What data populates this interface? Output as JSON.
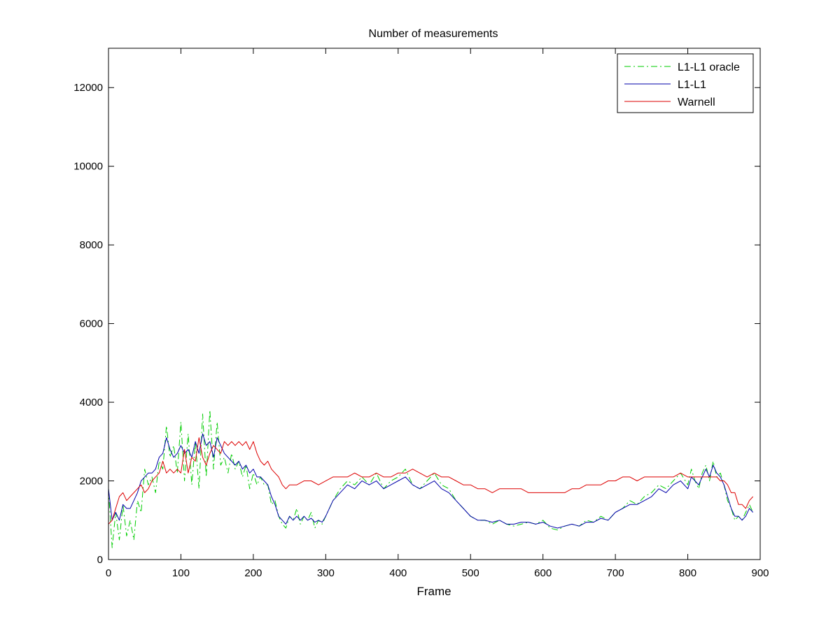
{
  "chart_data": {
    "type": "line",
    "title": "Number of measurements",
    "xlabel": "Frame",
    "ylabel": "",
    "xlim": [
      0,
      900
    ],
    "ylim": [
      0,
      13000
    ],
    "x_ticks": [
      "0",
      "100",
      "200",
      "300",
      "400",
      "500",
      "600",
      "700",
      "800",
      "900"
    ],
    "y_ticks": [
      "0",
      "2000",
      "4000",
      "6000",
      "8000",
      "10000",
      "12000"
    ],
    "grid": false,
    "legend_position": "top-right",
    "series": [
      {
        "name": "L1-L1 oracle",
        "color": "#00cc00",
        "style": "dashdot",
        "x": [
          0,
          5,
          10,
          15,
          20,
          25,
          30,
          35,
          40,
          45,
          50,
          55,
          60,
          65,
          70,
          75,
          80,
          85,
          90,
          95,
          100,
          105,
          110,
          115,
          120,
          125,
          130,
          135,
          140,
          145,
          150,
          155,
          160,
          165,
          170,
          175,
          180,
          185,
          190,
          195,
          200,
          205,
          210,
          215,
          220,
          225,
          230,
          235,
          240,
          245,
          250,
          255,
          260,
          265,
          270,
          275,
          280,
          285,
          290,
          295,
          300,
          310,
          320,
          330,
          340,
          350,
          360,
          370,
          380,
          390,
          400,
          410,
          420,
          430,
          440,
          450,
          460,
          470,
          480,
          490,
          500,
          510,
          520,
          530,
          540,
          550,
          560,
          570,
          580,
          590,
          600,
          610,
          620,
          630,
          640,
          650,
          660,
          670,
          680,
          690,
          700,
          710,
          720,
          730,
          740,
          750,
          760,
          770,
          780,
          790,
          800,
          805,
          810,
          815,
          820,
          825,
          830,
          835,
          840,
          845,
          850,
          855,
          860,
          865,
          870,
          875,
          880,
          885,
          890
        ],
        "y": [
          1800,
          300,
          1200,
          500,
          1400,
          600,
          1000,
          500,
          1500,
          1200,
          2300,
          1900,
          2100,
          1700,
          2500,
          2300,
          3400,
          2600,
          2900,
          2200,
          3500,
          2000,
          3200,
          1900,
          3000,
          1800,
          3700,
          2100,
          3800,
          2300,
          3500,
          2400,
          2600,
          2200,
          2700,
          2300,
          2500,
          2100,
          2400,
          1800,
          2200,
          1900,
          2100,
          1900,
          1900,
          1400,
          1500,
          1100,
          900,
          800,
          1100,
          1000,
          1300,
          900,
          1100,
          1000,
          1200,
          800,
          1000,
          900,
          1100,
          1500,
          1800,
          2000,
          1900,
          2100,
          1900,
          2200,
          1800,
          2000,
          2100,
          2300,
          1900,
          1800,
          2000,
          2200,
          1900,
          1800,
          1500,
          1300,
          1100,
          1000,
          1000,
          900,
          1000,
          900,
          850,
          900,
          950,
          900,
          1000,
          800,
          750,
          850,
          900,
          850,
          1000,
          950,
          1100,
          1000,
          1200,
          1300,
          1500,
          1400,
          1600,
          1700,
          1900,
          1800,
          2000,
          2200,
          1900,
          2300,
          2000,
          1800,
          2200,
          2400,
          2000,
          2500,
          2100,
          2200,
          1900,
          1500,
          1300,
          1000,
          1100,
          1000,
          1200,
          1400,
          1200
        ]
      },
      {
        "name": "L1-L1",
        "color": "#0000aa",
        "style": "solid",
        "x": [
          0,
          5,
          10,
          15,
          20,
          25,
          30,
          35,
          40,
          45,
          50,
          55,
          60,
          65,
          70,
          75,
          80,
          85,
          90,
          95,
          100,
          105,
          110,
          115,
          120,
          125,
          130,
          135,
          140,
          145,
          150,
          155,
          160,
          165,
          170,
          175,
          180,
          185,
          190,
          195,
          200,
          205,
          210,
          215,
          220,
          225,
          230,
          235,
          240,
          245,
          250,
          255,
          260,
          265,
          270,
          275,
          280,
          285,
          290,
          295,
          300,
          310,
          320,
          330,
          340,
          350,
          360,
          370,
          380,
          390,
          400,
          410,
          420,
          430,
          440,
          450,
          460,
          470,
          480,
          490,
          500,
          510,
          520,
          530,
          540,
          550,
          560,
          570,
          580,
          590,
          600,
          610,
          620,
          630,
          640,
          650,
          660,
          670,
          680,
          690,
          700,
          710,
          720,
          730,
          740,
          750,
          760,
          770,
          780,
          790,
          800,
          805,
          810,
          815,
          820,
          825,
          830,
          835,
          840,
          845,
          850,
          855,
          860,
          865,
          870,
          875,
          880,
          885,
          890
        ],
        "y": [
          1800,
          1000,
          1200,
          1000,
          1400,
          1300,
          1300,
          1500,
          1700,
          2000,
          2100,
          2200,
          2200,
          2300,
          2600,
          2700,
          3100,
          2800,
          2600,
          2700,
          2900,
          2700,
          2800,
          2600,
          3000,
          2700,
          3200,
          2900,
          3000,
          2600,
          3100,
          2900,
          2700,
          2600,
          2500,
          2400,
          2500,
          2300,
          2400,
          2200,
          2300,
          2100,
          2100,
          2000,
          1900,
          1600,
          1400,
          1100,
          1000,
          900,
          1100,
          1000,
          1100,
          1000,
          1100,
          1000,
          1050,
          950,
          1000,
          950,
          1100,
          1500,
          1700,
          1900,
          1800,
          2000,
          1900,
          2000,
          1800,
          1900,
          2000,
          2100,
          1900,
          1800,
          1900,
          2000,
          1800,
          1700,
          1500,
          1300,
          1100,
          1000,
          1000,
          950,
          1000,
          900,
          900,
          950,
          950,
          900,
          950,
          850,
          800,
          850,
          900,
          850,
          950,
          950,
          1050,
          1000,
          1200,
          1300,
          1400,
          1400,
          1500,
          1600,
          1800,
          1700,
          1900,
          2000,
          1800,
          2100,
          2000,
          1900,
          2100,
          2300,
          2100,
          2400,
          2200,
          2100,
          1900,
          1600,
          1300,
          1100,
          1100,
          1000,
          1100,
          1300,
          1200
        ]
      },
      {
        "name": "Warnell",
        "color": "#dd0000",
        "style": "solid",
        "x": [
          0,
          5,
          10,
          15,
          20,
          25,
          30,
          35,
          40,
          45,
          50,
          55,
          60,
          65,
          70,
          75,
          80,
          85,
          90,
          95,
          100,
          105,
          110,
          115,
          120,
          125,
          130,
          135,
          140,
          145,
          150,
          155,
          160,
          165,
          170,
          175,
          180,
          185,
          190,
          195,
          200,
          205,
          210,
          215,
          220,
          225,
          230,
          235,
          240,
          245,
          250,
          260,
          270,
          280,
          290,
          300,
          310,
          320,
          330,
          340,
          350,
          360,
          370,
          380,
          390,
          400,
          410,
          420,
          430,
          440,
          450,
          460,
          470,
          480,
          490,
          500,
          510,
          520,
          530,
          540,
          550,
          560,
          570,
          580,
          590,
          600,
          610,
          620,
          630,
          640,
          650,
          660,
          670,
          680,
          690,
          700,
          710,
          720,
          730,
          740,
          750,
          760,
          770,
          780,
          790,
          800,
          810,
          820,
          830,
          840,
          845,
          850,
          855,
          860,
          865,
          870,
          875,
          880,
          885,
          890
        ],
        "y": [
          900,
          1000,
          1300,
          1600,
          1700,
          1500,
          1600,
          1700,
          1800,
          1900,
          1700,
          1800,
          2000,
          2100,
          2200,
          2500,
          2200,
          2300,
          2200,
          2300,
          2200,
          2800,
          2200,
          2600,
          2500,
          3100,
          2600,
          2400,
          2700,
          2900,
          2800,
          2700,
          3000,
          2900,
          3000,
          2900,
          3000,
          2900,
          3000,
          2800,
          3000,
          2700,
          2500,
          2400,
          2500,
          2300,
          2200,
          2100,
          1900,
          1800,
          1900,
          1900,
          2000,
          2000,
          1900,
          2000,
          2100,
          2100,
          2100,
          2200,
          2100,
          2100,
          2200,
          2100,
          2100,
          2200,
          2200,
          2300,
          2200,
          2100,
          2200,
          2100,
          2100,
          2000,
          1900,
          1900,
          1800,
          1800,
          1700,
          1800,
          1800,
          1800,
          1800,
          1700,
          1700,
          1700,
          1700,
          1700,
          1700,
          1800,
          1800,
          1900,
          1900,
          1900,
          2000,
          2000,
          2100,
          2100,
          2000,
          2100,
          2100,
          2100,
          2100,
          2100,
          2200,
          2100,
          2100,
          2100,
          2100,
          2100,
          2000,
          2000,
          1900,
          1700,
          1700,
          1400,
          1400,
          1300,
          1500,
          1600
        ]
      }
    ]
  }
}
